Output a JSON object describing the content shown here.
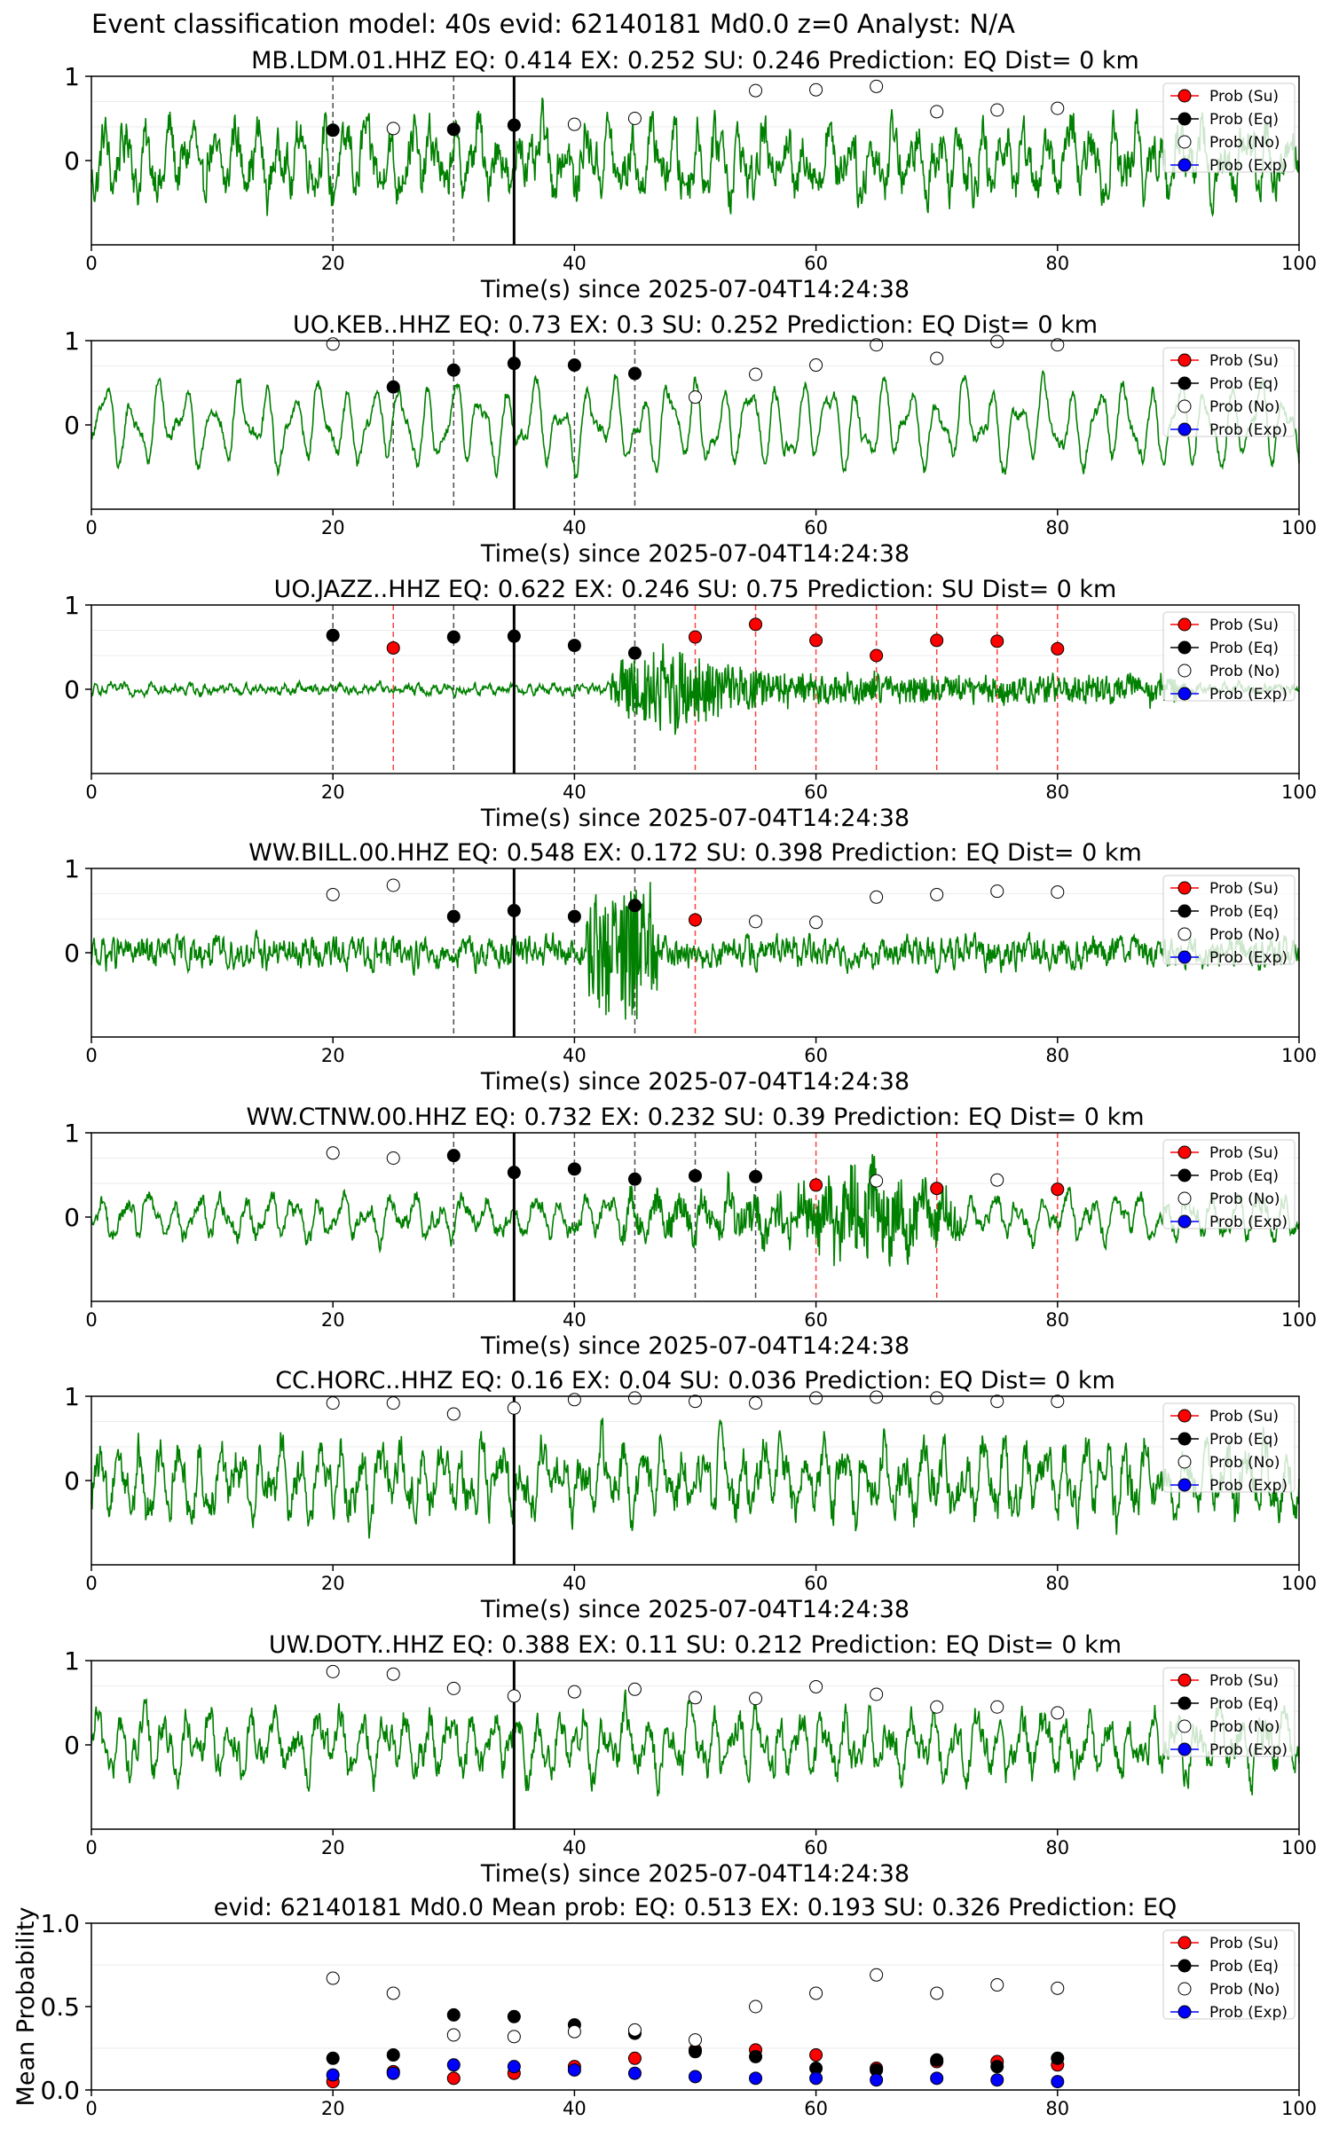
{
  "suptitle": "Event classification model: 40s evid: 62140181 Md0.0 z=0 Analyst: N/A",
  "legend": [
    "Prob (Su)",
    "Prob (Eq)",
    "Prob (No)",
    "Prob (Exp)"
  ],
  "colors": {
    "trace": "#008000",
    "su": "#ff0000",
    "eq": "#000000",
    "no": "#ffffff",
    "exp": "#0000ff",
    "grid": "#ebebeb"
  },
  "chart_data": [
    {
      "type": "line",
      "title": "MB.LDM.01.HHZ   EQ: 0.414  EX: 0.252  SU: 0.246   Prediction: EQ    Dist= 0 km",
      "xlabel": "Time(s) since 2025-07-04T14:24:38",
      "xlim": [
        0,
        100
      ],
      "xticks": [
        "0",
        "20",
        "40",
        "60",
        "80",
        "100"
      ],
      "yticks": [
        "1",
        "0"
      ],
      "pick_time": 35,
      "points": [
        {
          "t": 20,
          "cls": "eq",
          "p": 0.36
        },
        {
          "t": 25,
          "cls": "no",
          "p": 0.38
        },
        {
          "t": 30,
          "cls": "eq",
          "p": 0.37
        },
        {
          "t": 35,
          "cls": "eq",
          "p": 0.42
        },
        {
          "t": 40,
          "cls": "no",
          "p": 0.43
        },
        {
          "t": 45,
          "cls": "no",
          "p": 0.5
        },
        {
          "t": 55,
          "cls": "no",
          "p": 0.83
        },
        {
          "t": 60,
          "cls": "no",
          "p": 0.84
        },
        {
          "t": 65,
          "cls": "no",
          "p": 0.88
        },
        {
          "t": 70,
          "cls": "no",
          "p": 0.58
        },
        {
          "t": 75,
          "cls": "no",
          "p": 0.6
        },
        {
          "t": 80,
          "cls": "no",
          "p": 0.62
        }
      ]
    },
    {
      "type": "line",
      "title": "UO.KEB..HHZ   EQ: 0.73  EX: 0.3  SU: 0.252   Prediction: EQ    Dist= 0 km",
      "xlabel": "Time(s) since 2025-07-04T14:24:38",
      "xlim": [
        0,
        100
      ],
      "xticks": [
        "0",
        "20",
        "40",
        "60",
        "80",
        "100"
      ],
      "yticks": [
        "1",
        "0"
      ],
      "pick_time": 35,
      "points": [
        {
          "t": 20,
          "cls": "no",
          "p": 0.96
        },
        {
          "t": 25,
          "cls": "eq",
          "p": 0.45
        },
        {
          "t": 30,
          "cls": "eq",
          "p": 0.65
        },
        {
          "t": 35,
          "cls": "eq",
          "p": 0.73
        },
        {
          "t": 40,
          "cls": "eq",
          "p": 0.71
        },
        {
          "t": 45,
          "cls": "eq",
          "p": 0.61
        },
        {
          "t": 50,
          "cls": "no",
          "p": 0.33
        },
        {
          "t": 55,
          "cls": "no",
          "p": 0.6
        },
        {
          "t": 60,
          "cls": "no",
          "p": 0.71
        },
        {
          "t": 65,
          "cls": "no",
          "p": 0.95
        },
        {
          "t": 70,
          "cls": "no",
          "p": 0.79
        },
        {
          "t": 75,
          "cls": "no",
          "p": 0.99
        },
        {
          "t": 80,
          "cls": "no",
          "p": 0.95
        }
      ]
    },
    {
      "type": "line",
      "title": "UO.JAZZ..HHZ   EQ: 0.622  EX: 0.246  SU: 0.75   Prediction: SU    Dist= 0 km",
      "xlabel": "Time(s) since 2025-07-04T14:24:38",
      "xlim": [
        0,
        100
      ],
      "xticks": [
        "0",
        "20",
        "40",
        "60",
        "80",
        "100"
      ],
      "yticks": [
        "1",
        "0"
      ],
      "pick_time": 35,
      "points": [
        {
          "t": 20,
          "cls": "eq",
          "p": 0.64
        },
        {
          "t": 25,
          "cls": "su",
          "p": 0.49
        },
        {
          "t": 30,
          "cls": "eq",
          "p": 0.62
        },
        {
          "t": 35,
          "cls": "eq",
          "p": 0.63
        },
        {
          "t": 40,
          "cls": "eq",
          "p": 0.52
        },
        {
          "t": 45,
          "cls": "eq",
          "p": 0.43
        },
        {
          "t": 50,
          "cls": "su",
          "p": 0.62
        },
        {
          "t": 55,
          "cls": "su",
          "p": 0.77
        },
        {
          "t": 60,
          "cls": "su",
          "p": 0.58
        },
        {
          "t": 65,
          "cls": "su",
          "p": 0.4
        },
        {
          "t": 70,
          "cls": "su",
          "p": 0.58
        },
        {
          "t": 75,
          "cls": "su",
          "p": 0.57
        },
        {
          "t": 80,
          "cls": "su",
          "p": 0.48
        }
      ]
    },
    {
      "type": "line",
      "title": "WW.BILL.00.HHZ   EQ: 0.548  EX: 0.172  SU: 0.398   Prediction: EQ    Dist= 0 km",
      "xlabel": "Time(s) since 2025-07-04T14:24:38",
      "xlim": [
        0,
        100
      ],
      "xticks": [
        "0",
        "20",
        "40",
        "60",
        "80",
        "100"
      ],
      "yticks": [
        "1",
        "0"
      ],
      "pick_time": 35,
      "points": [
        {
          "t": 20,
          "cls": "no",
          "p": 0.69
        },
        {
          "t": 25,
          "cls": "no",
          "p": 0.8
        },
        {
          "t": 30,
          "cls": "eq",
          "p": 0.43
        },
        {
          "t": 35,
          "cls": "eq",
          "p": 0.5
        },
        {
          "t": 40,
          "cls": "eq",
          "p": 0.43
        },
        {
          "t": 45,
          "cls": "eq",
          "p": 0.56
        },
        {
          "t": 50,
          "cls": "su",
          "p": 0.39
        },
        {
          "t": 55,
          "cls": "no",
          "p": 0.37
        },
        {
          "t": 60,
          "cls": "no",
          "p": 0.36
        },
        {
          "t": 65,
          "cls": "no",
          "p": 0.66
        },
        {
          "t": 70,
          "cls": "no",
          "p": 0.69
        },
        {
          "t": 75,
          "cls": "no",
          "p": 0.73
        },
        {
          "t": 80,
          "cls": "no",
          "p": 0.72
        }
      ]
    },
    {
      "type": "line",
      "title": "WW.CTNW.00.HHZ   EQ: 0.732  EX: 0.232  SU: 0.39   Prediction: EQ    Dist= 0 km",
      "xlabel": "Time(s) since 2025-07-04T14:24:38",
      "xlim": [
        0,
        100
      ],
      "xticks": [
        "0",
        "20",
        "40",
        "60",
        "80",
        "100"
      ],
      "yticks": [
        "1",
        "0"
      ],
      "pick_time": 35,
      "points": [
        {
          "t": 20,
          "cls": "no",
          "p": 0.76
        },
        {
          "t": 25,
          "cls": "no",
          "p": 0.7
        },
        {
          "t": 30,
          "cls": "eq",
          "p": 0.73
        },
        {
          "t": 35,
          "cls": "eq",
          "p": 0.53
        },
        {
          "t": 40,
          "cls": "eq",
          "p": 0.57
        },
        {
          "t": 45,
          "cls": "eq",
          "p": 0.45
        },
        {
          "t": 50,
          "cls": "eq",
          "p": 0.49
        },
        {
          "t": 55,
          "cls": "eq",
          "p": 0.48
        },
        {
          "t": 60,
          "cls": "su",
          "p": 0.38
        },
        {
          "t": 65,
          "cls": "no",
          "p": 0.43
        },
        {
          "t": 70,
          "cls": "su",
          "p": 0.34
        },
        {
          "t": 75,
          "cls": "no",
          "p": 0.44
        },
        {
          "t": 80,
          "cls": "su",
          "p": 0.33
        }
      ]
    },
    {
      "type": "line",
      "title": "CC.HORC..HHZ   EQ: 0.16  EX: 0.04  SU: 0.036   Prediction: EQ    Dist= 0 km",
      "xlabel": "Time(s) since 2025-07-04T14:24:38",
      "xlim": [
        0,
        100
      ],
      "xticks": [
        "0",
        "20",
        "40",
        "60",
        "80",
        "100"
      ],
      "yticks": [
        "1",
        "0"
      ],
      "pick_time": 35,
      "points": [
        {
          "t": 20,
          "cls": "no",
          "p": 0.92
        },
        {
          "t": 25,
          "cls": "no",
          "p": 0.92
        },
        {
          "t": 30,
          "cls": "no",
          "p": 0.79
        },
        {
          "t": 35,
          "cls": "no",
          "p": 0.86
        },
        {
          "t": 40,
          "cls": "no",
          "p": 0.96
        },
        {
          "t": 45,
          "cls": "no",
          "p": 0.98
        },
        {
          "t": 50,
          "cls": "no",
          "p": 0.94
        },
        {
          "t": 55,
          "cls": "no",
          "p": 0.92
        },
        {
          "t": 60,
          "cls": "no",
          "p": 0.98
        },
        {
          "t": 65,
          "cls": "no",
          "p": 0.99
        },
        {
          "t": 70,
          "cls": "no",
          "p": 0.98
        },
        {
          "t": 75,
          "cls": "no",
          "p": 0.94
        },
        {
          "t": 80,
          "cls": "no",
          "p": 0.94
        }
      ]
    },
    {
      "type": "line",
      "title": "UW.DOTY..HHZ   EQ: 0.388  EX: 0.11  SU: 0.212   Prediction: EQ    Dist= 0 km",
      "xlabel": "Time(s) since 2025-07-04T14:24:38",
      "xlim": [
        0,
        100
      ],
      "xticks": [
        "0",
        "20",
        "40",
        "60",
        "80",
        "100"
      ],
      "yticks": [
        "1",
        "0"
      ],
      "pick_time": 35,
      "points": [
        {
          "t": 20,
          "cls": "no",
          "p": 0.87
        },
        {
          "t": 25,
          "cls": "no",
          "p": 0.84
        },
        {
          "t": 30,
          "cls": "no",
          "p": 0.67
        },
        {
          "t": 35,
          "cls": "no",
          "p": 0.58
        },
        {
          "t": 40,
          "cls": "no",
          "p": 0.63
        },
        {
          "t": 45,
          "cls": "no",
          "p": 0.66
        },
        {
          "t": 50,
          "cls": "no",
          "p": 0.56
        },
        {
          "t": 55,
          "cls": "no",
          "p": 0.55
        },
        {
          "t": 60,
          "cls": "no",
          "p": 0.69
        },
        {
          "t": 65,
          "cls": "no",
          "p": 0.6
        },
        {
          "t": 70,
          "cls": "no",
          "p": 0.45
        },
        {
          "t": 75,
          "cls": "no",
          "p": 0.45
        },
        {
          "t": 80,
          "cls": "no",
          "p": 0.38
        }
      ]
    },
    {
      "type": "scatter",
      "title": "evid: 62140181  Md0.0   Mean prob:   EQ: 0.513  EX: 0.193  SU: 0.326   Prediction: EQ",
      "ylabel": "Mean Probability",
      "xlim": [
        0,
        100
      ],
      "ylim": [
        0,
        1
      ],
      "xticks": [
        "0",
        "20",
        "40",
        "60",
        "80",
        "100"
      ],
      "yticks": [
        "1.0",
        "0.5",
        "0.0"
      ],
      "x": [
        20,
        25,
        30,
        35,
        40,
        45,
        50,
        55,
        60,
        65,
        70,
        75,
        80
      ],
      "series": [
        {
          "name": "Prob (Su)",
          "cls": "su",
          "values": [
            0.05,
            0.11,
            0.07,
            0.1,
            0.14,
            0.19,
            0.24,
            0.24,
            0.21,
            0.13,
            0.17,
            0.17,
            0.15
          ]
        },
        {
          "name": "Prob (Eq)",
          "cls": "eq",
          "values": [
            0.19,
            0.21,
            0.45,
            0.44,
            0.39,
            0.34,
            0.23,
            0.2,
            0.13,
            0.12,
            0.18,
            0.14,
            0.19
          ]
        },
        {
          "name": "Prob (No)",
          "cls": "no",
          "values": [
            0.67,
            0.58,
            0.33,
            0.32,
            0.35,
            0.36,
            0.3,
            0.5,
            0.58,
            0.69,
            0.58,
            0.63,
            0.61
          ]
        },
        {
          "name": "Prob (Exp)",
          "cls": "exp",
          "values": [
            0.09,
            0.1,
            0.15,
            0.14,
            0.12,
            0.1,
            0.08,
            0.07,
            0.07,
            0.06,
            0.07,
            0.06,
            0.05
          ]
        }
      ]
    }
  ]
}
